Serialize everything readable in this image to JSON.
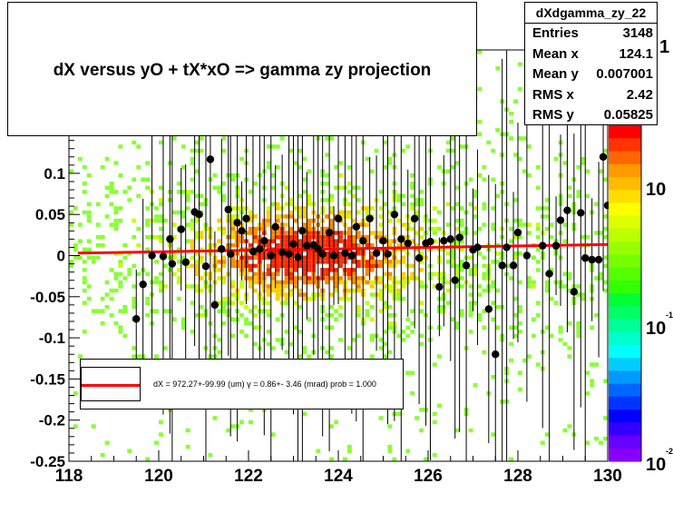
{
  "title": "dX  versus  yO + tX*xO =>  gamma zy projection",
  "stats": {
    "name": "dXdgamma_zy_22",
    "rows": [
      {
        "label": "Entries",
        "value": "3148"
      },
      {
        "label": "Mean x",
        "value": "124.1"
      },
      {
        "label": "Mean y",
        "value": "0.007001"
      },
      {
        "label": "RMS x",
        "value": "2.42"
      },
      {
        "label": "RMS y",
        "value": "0.05825"
      }
    ]
  },
  "legend": {
    "text": "dX = 972.27+-99.99 (um) γ =   0.86+- 3.46 (mrad) prob = 1.000",
    "line_color": "#ff0000"
  },
  "colorbar": {
    "tick_labels": [
      "1",
      "10",
      "10",
      "10"
    ],
    "exponent_labels": [
      "-1",
      "-2"
    ]
  },
  "chart_data": {
    "type": "scatter",
    "title": "dX  versus  yO + tX*xO =>  gamma zy projection",
    "xlim": [
      118,
      130
    ],
    "ylim": [
      -0.25,
      0.25
    ],
    "x_ticks": [
      118,
      120,
      122,
      124,
      126,
      128,
      130
    ],
    "x_tick_labels": [
      "118",
      "120",
      "122",
      "124",
      "126",
      "128",
      "130"
    ],
    "y_ticks": [
      -0.25,
      -0.2,
      -0.15,
      -0.1,
      -0.05,
      0,
      0.05,
      0.1
    ],
    "y_tick_labels": [
      "-0.25",
      "-0.2",
      "-0.15",
      "-0.1",
      "-0.05",
      "0",
      "0.05",
      "0.1"
    ],
    "profile_points": [
      {
        "x": 119.5,
        "y": -0.077
      },
      {
        "x": 119.65,
        "y": -0.035
      },
      {
        "x": 119.85,
        "y": 0.0
      },
      {
        "x": 120.1,
        "y": -0.001
      },
      {
        "x": 120.25,
        "y": 0.02
      },
      {
        "x": 120.3,
        "y": -0.01
      },
      {
        "x": 120.5,
        "y": 0.032
      },
      {
        "x": 120.6,
        "y": -0.008
      },
      {
        "x": 120.8,
        "y": 0.053
      },
      {
        "x": 120.9,
        "y": 0.05
      },
      {
        "x": 121.05,
        "y": -0.013
      },
      {
        "x": 121.15,
        "y": 0.117
      },
      {
        "x": 121.25,
        "y": -0.06
      },
      {
        "x": 121.4,
        "y": 0.008
      },
      {
        "x": 121.55,
        "y": 0.056
      },
      {
        "x": 121.6,
        "y": 0.002
      },
      {
        "x": 121.75,
        "y": 0.04
      },
      {
        "x": 121.85,
        "y": 0.03
      },
      {
        "x": 121.95,
        "y": 0.045
      },
      {
        "x": 122.1,
        "y": 0.005
      },
      {
        "x": 122.25,
        "y": 0.008
      },
      {
        "x": 122.35,
        "y": 0.018
      },
      {
        "x": 122.5,
        "y": 0.0
      },
      {
        "x": 122.6,
        "y": 0.035
      },
      {
        "x": 122.75,
        "y": 0.004
      },
      {
        "x": 122.9,
        "y": 0.002
      },
      {
        "x": 123.0,
        "y": 0.014
      },
      {
        "x": 123.1,
        "y": -0.002
      },
      {
        "x": 123.2,
        "y": 0.03
      },
      {
        "x": 123.3,
        "y": 0.012
      },
      {
        "x": 123.45,
        "y": 0.013
      },
      {
        "x": 123.55,
        "y": 0.008
      },
      {
        "x": 123.65,
        "y": 0.002
      },
      {
        "x": 123.8,
        "y": 0.028
      },
      {
        "x": 123.9,
        "y": 0.0
      },
      {
        "x": 124.0,
        "y": 0.045
      },
      {
        "x": 124.15,
        "y": 0.003
      },
      {
        "x": 124.3,
        "y": 0.0
      },
      {
        "x": 124.4,
        "y": 0.035
      },
      {
        "x": 124.55,
        "y": 0.018
      },
      {
        "x": 124.7,
        "y": 0.045
      },
      {
        "x": 124.85,
        "y": 0.003
      },
      {
        "x": 125.0,
        "y": 0.018
      },
      {
        "x": 125.1,
        "y": 0.002
      },
      {
        "x": 125.25,
        "y": 0.05
      },
      {
        "x": 125.4,
        "y": 0.02
      },
      {
        "x": 125.55,
        "y": 0.015
      },
      {
        "x": 125.7,
        "y": 0.045
      },
      {
        "x": 125.8,
        "y": -0.003
      },
      {
        "x": 125.95,
        "y": 0.015
      },
      {
        "x": 126.05,
        "y": 0.017
      },
      {
        "x": 126.25,
        "y": -0.038
      },
      {
        "x": 126.35,
        "y": 0.018
      },
      {
        "x": 126.5,
        "y": 0.02
      },
      {
        "x": 126.6,
        "y": -0.03
      },
      {
        "x": 126.7,
        "y": 0.022
      },
      {
        "x": 126.85,
        "y": -0.012
      },
      {
        "x": 127.0,
        "y": 0.007
      },
      {
        "x": 127.1,
        "y": 0.01
      },
      {
        "x": 127.35,
        "y": -0.065
      },
      {
        "x": 127.5,
        "y": -0.12
      },
      {
        "x": 127.65,
        "y": -0.012
      },
      {
        "x": 127.75,
        "y": 0.01
      },
      {
        "x": 127.9,
        "y": -0.012
      },
      {
        "x": 128.0,
        "y": 0.028
      },
      {
        "x": 128.2,
        "y": 0.0
      },
      {
        "x": 128.55,
        "y": 0.012
      },
      {
        "x": 128.7,
        "y": -0.022
      },
      {
        "x": 128.85,
        "y": 0.012
      },
      {
        "x": 128.95,
        "y": 0.043
      },
      {
        "x": 129.1,
        "y": 0.055
      },
      {
        "x": 129.25,
        "y": -0.044
      },
      {
        "x": 129.4,
        "y": 0.052
      },
      {
        "x": 129.5,
        "y": -0.003
      },
      {
        "x": 129.65,
        "y": -0.005
      },
      {
        "x": 129.8,
        "y": -0.005
      },
      {
        "x": 129.9,
        "y": 0.12
      },
      {
        "x": 130.0,
        "y": 0.061
      }
    ],
    "fit_line": {
      "x": [
        118.2,
        130.0
      ],
      "y": [
        0.003,
        0.0135
      ],
      "color": "#ff0000"
    },
    "grid": false,
    "legend_position": "bottom-left",
    "colorbar": true,
    "colorbar_scale": "log"
  }
}
